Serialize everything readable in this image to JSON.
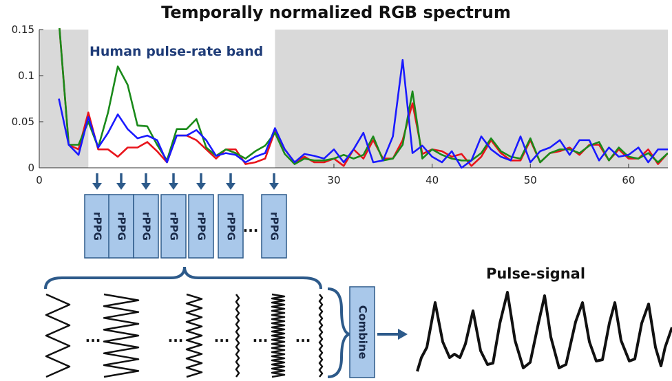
{
  "title": "Temporally normalized RGB spectrum",
  "band_label": "Human pulse-rate band",
  "rppg_label": "rPPG",
  "ellipsis": "...",
  "combine_label": "Combine",
  "pulse_title": "Pulse-signal",
  "colors": {
    "red": "#e8141b",
    "green": "#1a8a1a",
    "blue": "#1a1aff",
    "band_text": "#1f3c78",
    "box_fill": "#a9c8ea",
    "box_stroke": "#2d5a8a",
    "arrow": "#2d5a8a",
    "shade": "#d9d9d9"
  },
  "chart_data": {
    "type": "line",
    "title": "Temporally normalized RGB spectrum",
    "xlim": [
      0,
      64
    ],
    "ylim": [
      0,
      0.15
    ],
    "xticks": [
      0,
      30,
      40,
      50,
      60
    ],
    "yticks": [
      0,
      0.05,
      0.1,
      0.15
    ],
    "ytick_labels": [
      "0",
      "0.05",
      "0.1",
      "0.15"
    ],
    "shaded_ranges": [
      [
        0,
        5
      ],
      [
        24,
        64
      ]
    ],
    "band": [
      5,
      24
    ],
    "x": [
      2,
      3,
      4,
      5,
      6,
      7,
      8,
      9,
      10,
      11,
      12,
      13,
      14,
      15,
      16,
      17,
      18,
      19,
      20,
      21,
      22,
      23,
      24,
      25,
      26,
      27,
      28,
      29,
      30,
      31,
      32,
      33,
      34,
      35,
      36,
      37,
      38,
      39,
      40,
      41,
      42,
      43,
      44,
      45,
      46,
      47,
      48,
      49,
      50,
      51,
      52,
      53,
      54,
      55,
      56,
      57,
      58,
      59,
      60,
      61,
      62,
      63,
      64
    ],
    "series": [
      {
        "color": "red",
        "values": [
          0.16,
          0.025,
          0.02,
          0.06,
          0.02,
          0.02,
          0.012,
          0.022,
          0.022,
          0.028,
          0.018,
          0.006,
          0.035,
          0.035,
          0.03,
          0.02,
          0.01,
          0.02,
          0.02,
          0.004,
          0.006,
          0.01,
          0.04,
          0.02,
          0.006,
          0.012,
          0.006,
          0.006,
          0.01,
          0.002,
          0.02,
          0.01,
          0.03,
          0.01,
          0.01,
          0.03,
          0.07,
          0.015,
          0.02,
          0.018,
          0.012,
          0.015,
          0.002,
          0.012,
          0.03,
          0.016,
          0.008,
          0.008,
          0.03,
          0.006,
          0.016,
          0.018,
          0.022,
          0.014,
          0.025,
          0.025,
          0.008,
          0.02,
          0.01,
          0.01,
          0.02,
          0.004,
          0.016
        ]
      },
      {
        "color": "green",
        "values": [
          0.16,
          0.025,
          0.025,
          0.05,
          0.022,
          0.06,
          0.11,
          0.09,
          0.046,
          0.045,
          0.025,
          0.008,
          0.042,
          0.042,
          0.053,
          0.022,
          0.013,
          0.02,
          0.016,
          0.01,
          0.018,
          0.024,
          0.038,
          0.015,
          0.004,
          0.01,
          0.008,
          0.008,
          0.01,
          0.014,
          0.01,
          0.014,
          0.034,
          0.008,
          0.01,
          0.025,
          0.083,
          0.01,
          0.02,
          0.014,
          0.01,
          0.008,
          0.008,
          0.016,
          0.032,
          0.018,
          0.012,
          0.01,
          0.032,
          0.006,
          0.016,
          0.02,
          0.02,
          0.016,
          0.024,
          0.028,
          0.008,
          0.022,
          0.012,
          0.01,
          0.016,
          0.006,
          0.016
        ]
      },
      {
        "color": "blue",
        "values": [
          0.075,
          0.025,
          0.014,
          0.055,
          0.022,
          0.038,
          0.058,
          0.042,
          0.032,
          0.035,
          0.03,
          0.006,
          0.035,
          0.035,
          0.041,
          0.03,
          0.013,
          0.016,
          0.014,
          0.006,
          0.012,
          0.016,
          0.043,
          0.02,
          0.006,
          0.015,
          0.013,
          0.01,
          0.02,
          0.006,
          0.02,
          0.038,
          0.006,
          0.008,
          0.034,
          0.117,
          0.016,
          0.024,
          0.012,
          0.006,
          0.018,
          0.0,
          0.008,
          0.034,
          0.02,
          0.012,
          0.008,
          0.034,
          0.006,
          0.018,
          0.022,
          0.03,
          0.014,
          0.03,
          0.03,
          0.008,
          0.022,
          0.012,
          0.014,
          0.022,
          0.006,
          0.02,
          0.02
        ]
      }
    ]
  }
}
